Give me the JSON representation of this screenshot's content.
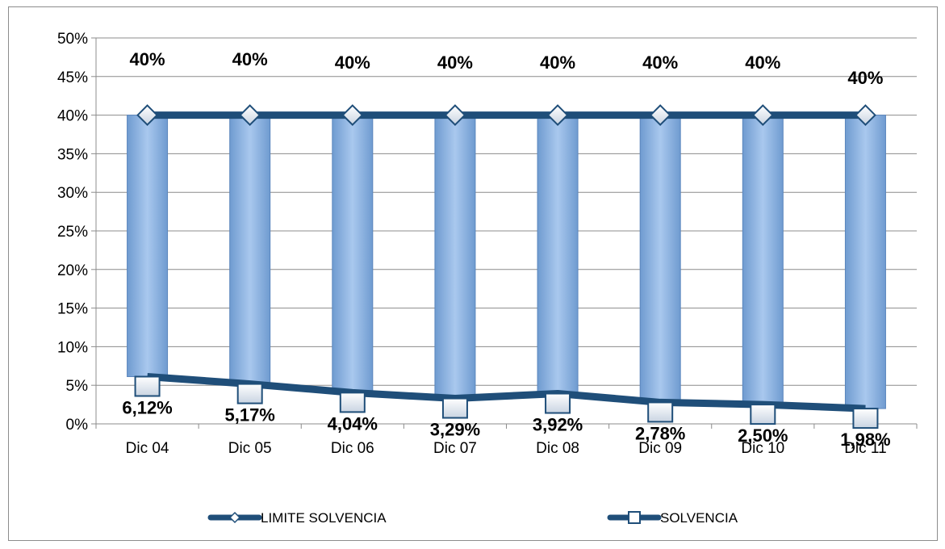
{
  "chart_data": {
    "type": "bar",
    "categories": [
      "Dic 04",
      "Dic 05",
      "Dic 06",
      "Dic 07",
      "Dic 08",
      "Dic 09",
      "Dic 10",
      "Dic 11"
    ],
    "y_ticks": [
      "0%",
      "5%",
      "10%",
      "15%",
      "20%",
      "25%",
      "30%",
      "35%",
      "40%",
      "45%",
      "50%"
    ],
    "ylim": [
      0,
      50
    ],
    "grid": true,
    "legend_position": "bottom",
    "series": [
      {
        "name": "LIMITE SOLVENCIA",
        "mark": "line-diamond",
        "values": [
          40,
          40,
          40,
          40,
          40,
          40,
          40,
          40
        ],
        "labels": [
          "40%",
          "40%",
          "40%",
          "40%",
          "40%",
          "40%",
          "40%",
          "40%"
        ],
        "color": "#1f4e79"
      },
      {
        "name": "SOLVENCIA",
        "mark": "line-square",
        "values": [
          6.12,
          5.17,
          4.04,
          3.29,
          3.92,
          2.78,
          2.5,
          1.98
        ],
        "labels": [
          "6,12%",
          "5,17%",
          "4,04%",
          "3,29%",
          "3,92%",
          "2,78%",
          "2,50%",
          "1,98%"
        ],
        "color": "#1f4e79"
      }
    ],
    "bar_color": "#8db4e2",
    "line_color": "#1f4e79"
  }
}
